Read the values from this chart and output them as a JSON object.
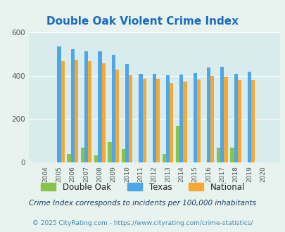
{
  "title": "Double Oak Violent Crime Index",
  "years": [
    2004,
    2005,
    2006,
    2007,
    2008,
    2009,
    2010,
    2011,
    2012,
    2013,
    2014,
    2015,
    2016,
    2017,
    2018,
    2019,
    2020
  ],
  "double_oak": [
    0,
    0,
    38,
    68,
    33,
    95,
    62,
    0,
    0,
    40,
    168,
    0,
    0,
    68,
    68,
    0,
    0
  ],
  "texas": [
    0,
    535,
    523,
    513,
    513,
    498,
    455,
    410,
    410,
    402,
    405,
    412,
    438,
    441,
    408,
    420,
    0
  ],
  "national": [
    0,
    469,
    474,
    467,
    458,
    429,
    403,
    387,
    387,
    367,
    374,
    383,
    399,
    395,
    381,
    379,
    0
  ],
  "bar_width": 0.27,
  "double_oak_color": "#88c34a",
  "texas_color": "#4da6e8",
  "national_color": "#f5a832",
  "bg_color": "#e8f3f0",
  "plot_bg_color": "#d8ecee",
  "ylim": [
    0,
    600
  ],
  "yticks": [
    0,
    200,
    400,
    600
  ],
  "grid_color": "#ffffff",
  "title_color": "#1a6bbf",
  "legend_labels": [
    "Double Oak",
    "Texas",
    "National"
  ],
  "footnote1": "Crime Index corresponds to incidents per 100,000 inhabitants",
  "footnote2": "© 2025 CityRating.com - https://www.cityrating.com/crime-statistics/",
  "footnote1_color": "#1a3a5c",
  "footnote2_color": "#4488aa"
}
